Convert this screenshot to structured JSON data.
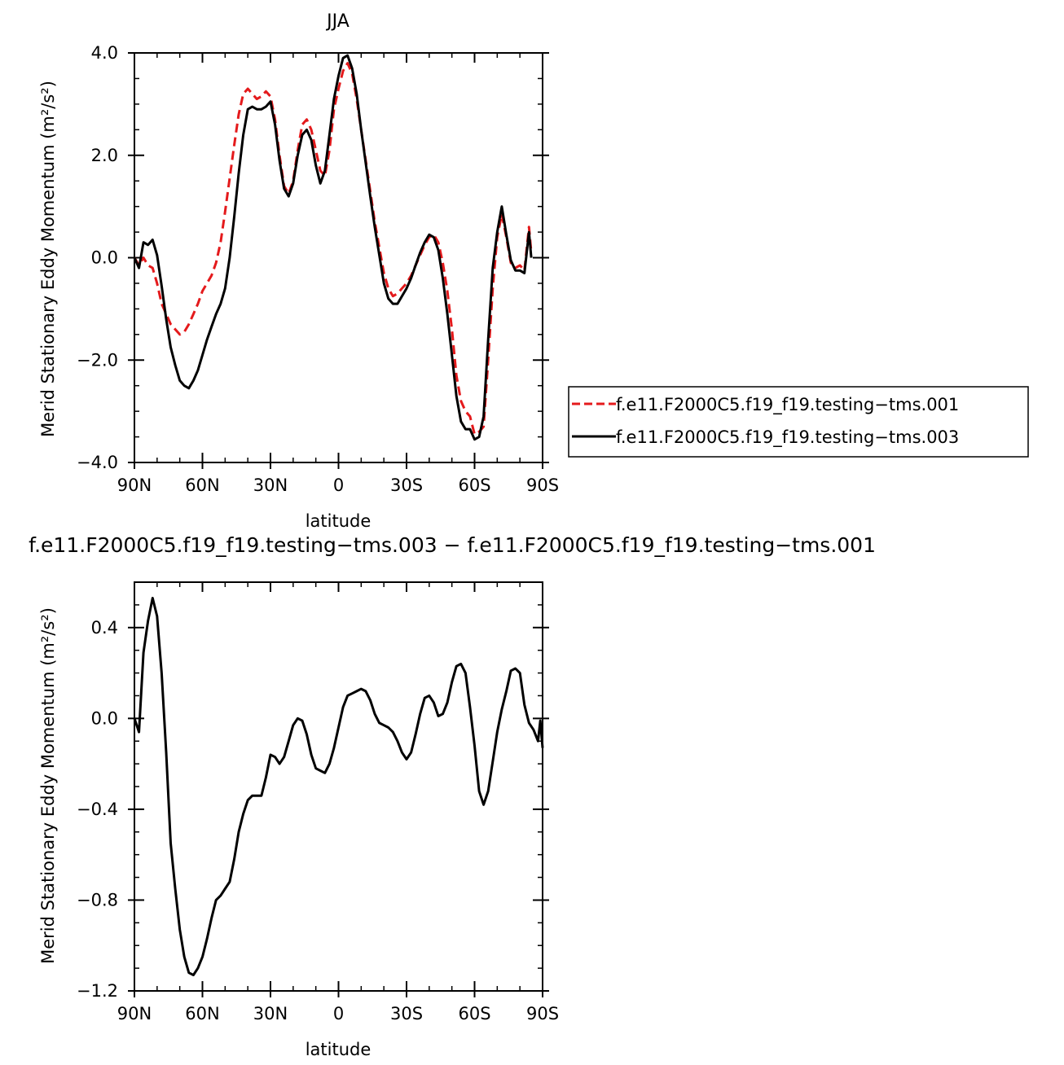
{
  "chart_data": [
    {
      "type": "line",
      "title": "JJA",
      "xlabel": "latitude",
      "ylabel": "Merid Stationary Eddy Momentum (m²/s²)",
      "xlim": [
        90,
        -90
      ],
      "ylim": [
        -4.0,
        4.0
      ],
      "x_ticks": [
        90,
        60,
        30,
        0,
        -30,
        -60,
        -90
      ],
      "x_tick_labels": [
        "90N",
        "60N",
        "30N",
        "0",
        "30S",
        "60S",
        "90S"
      ],
      "y_ticks": [
        -4.0,
        -2.0,
        0.0,
        2.0,
        4.0
      ],
      "y_tick_labels": [
        "−4.0",
        "−2.0",
        "0.0",
        "2.0",
        "4.0"
      ],
      "grid": false,
      "legend_position": "right",
      "series": [
        {
          "name": "f.e11.F2000C5.f19_f19.testing−tms.001",
          "color": "#e41a1c",
          "dash": "dashed",
          "points": [
            [
              90,
              0.0
            ],
            [
              88,
              -0.15
            ],
            [
              86,
              0.0
            ],
            [
              84,
              -0.15
            ],
            [
              82,
              -0.2
            ],
            [
              80,
              -0.5
            ],
            [
              78,
              -0.9
            ],
            [
              76,
              -1.1
            ],
            [
              74,
              -1.3
            ],
            [
              72,
              -1.4
            ],
            [
              70,
              -1.5
            ],
            [
              68,
              -1.45
            ],
            [
              66,
              -1.3
            ],
            [
              64,
              -1.1
            ],
            [
              62,
              -0.9
            ],
            [
              60,
              -0.65
            ],
            [
              58,
              -0.5
            ],
            [
              56,
              -0.35
            ],
            [
              54,
              -0.1
            ],
            [
              52,
              0.3
            ],
            [
              50,
              0.9
            ],
            [
              48,
              1.55
            ],
            [
              46,
              2.2
            ],
            [
              44,
              2.8
            ],
            [
              42,
              3.2
            ],
            [
              40,
              3.3
            ],
            [
              38,
              3.2
            ],
            [
              36,
              3.1
            ],
            [
              34,
              3.15
            ],
            [
              32,
              3.25
            ],
            [
              30,
              3.15
            ],
            [
              28,
              2.7
            ],
            [
              26,
              2.0
            ],
            [
              24,
              1.4
            ],
            [
              22,
              1.25
            ],
            [
              20,
              1.5
            ],
            [
              18,
              2.1
            ],
            [
              16,
              2.6
            ],
            [
              14,
              2.7
            ],
            [
              12,
              2.5
            ],
            [
              10,
              2.1
            ],
            [
              8,
              1.7
            ],
            [
              6,
              1.6
            ],
            [
              4,
              2.1
            ],
            [
              2,
              2.9
            ],
            [
              0,
              3.3
            ],
            [
              -2,
              3.65
            ],
            [
              -4,
              3.8
            ],
            [
              -6,
              3.6
            ],
            [
              -8,
              3.1
            ],
            [
              -10,
              2.5
            ],
            [
              -12,
              1.9
            ],
            [
              -14,
              1.3
            ],
            [
              -16,
              0.7
            ],
            [
              -18,
              0.2
            ],
            [
              -20,
              -0.3
            ],
            [
              -22,
              -0.6
            ],
            [
              -24,
              -0.75
            ],
            [
              -26,
              -0.7
            ],
            [
              -28,
              -0.6
            ],
            [
              -30,
              -0.5
            ],
            [
              -32,
              -0.35
            ],
            [
              -34,
              -0.15
            ],
            [
              -36,
              0.05
            ],
            [
              -38,
              0.25
            ],
            [
              -40,
              0.4
            ],
            [
              -42,
              0.45
            ],
            [
              -44,
              0.3
            ],
            [
              -46,
              -0.1
            ],
            [
              -48,
              -0.65
            ],
            [
              -50,
              -1.4
            ],
            [
              -52,
              -2.3
            ],
            [
              -54,
              -2.8
            ],
            [
              -56,
              -3.0
            ],
            [
              -58,
              -3.1
            ],
            [
              -60,
              -3.45
            ],
            [
              -62,
              -3.4
            ],
            [
              -64,
              -3.3
            ],
            [
              -66,
              -2.0
            ],
            [
              -68,
              -0.6
            ],
            [
              -70,
              0.4
            ],
            [
              -72,
              0.85
            ],
            [
              -74,
              0.4
            ],
            [
              -76,
              -0.1
            ],
            [
              -78,
              -0.2
            ],
            [
              -80,
              -0.15
            ],
            [
              -82,
              -0.25
            ],
            [
              -84,
              0.6
            ],
            [
              -85,
              0.1
            ]
          ]
        },
        {
          "name": "f.e11.F2000C5.f19_f19.testing−tms.003",
          "color": "#000000",
          "dash": "solid",
          "points": [
            [
              90,
              0.0
            ],
            [
              88,
              -0.2
            ],
            [
              86,
              0.3
            ],
            [
              84,
              0.25
            ],
            [
              82,
              0.35
            ],
            [
              80,
              0.05
            ],
            [
              78,
              -0.55
            ],
            [
              76,
              -1.2
            ],
            [
              74,
              -1.75
            ],
            [
              72,
              -2.1
            ],
            [
              70,
              -2.4
            ],
            [
              68,
              -2.5
            ],
            [
              66,
              -2.55
            ],
            [
              64,
              -2.4
            ],
            [
              62,
              -2.2
            ],
            [
              60,
              -1.9
            ],
            [
              58,
              -1.6
            ],
            [
              56,
              -1.35
            ],
            [
              54,
              -1.1
            ],
            [
              52,
              -0.9
            ],
            [
              50,
              -0.6
            ],
            [
              48,
              0.0
            ],
            [
              46,
              0.8
            ],
            [
              44,
              1.65
            ],
            [
              42,
              2.4
            ],
            [
              40,
              2.9
            ],
            [
              38,
              2.95
            ],
            [
              36,
              2.9
            ],
            [
              34,
              2.9
            ],
            [
              32,
              2.95
            ],
            [
              30,
              3.05
            ],
            [
              28,
              2.6
            ],
            [
              26,
              1.9
            ],
            [
              24,
              1.35
            ],
            [
              22,
              1.2
            ],
            [
              20,
              1.45
            ],
            [
              18,
              2.0
            ],
            [
              16,
              2.4
            ],
            [
              14,
              2.5
            ],
            [
              12,
              2.3
            ],
            [
              10,
              1.8
            ],
            [
              8,
              1.45
            ],
            [
              6,
              1.7
            ],
            [
              4,
              2.4
            ],
            [
              2,
              3.1
            ],
            [
              0,
              3.55
            ],
            [
              -2,
              3.9
            ],
            [
              -4,
              3.95
            ],
            [
              -6,
              3.7
            ],
            [
              -8,
              3.2
            ],
            [
              -10,
              2.5
            ],
            [
              -12,
              1.85
            ],
            [
              -14,
              1.2
            ],
            [
              -16,
              0.6
            ],
            [
              -18,
              0.05
            ],
            [
              -20,
              -0.5
            ],
            [
              -22,
              -0.8
            ],
            [
              -24,
              -0.9
            ],
            [
              -26,
              -0.9
            ],
            [
              -28,
              -0.75
            ],
            [
              -30,
              -0.6
            ],
            [
              -32,
              -0.4
            ],
            [
              -34,
              -0.15
            ],
            [
              -36,
              0.1
            ],
            [
              -38,
              0.3
            ],
            [
              -40,
              0.45
            ],
            [
              -42,
              0.4
            ],
            [
              -44,
              0.15
            ],
            [
              -46,
              -0.4
            ],
            [
              -48,
              -1.1
            ],
            [
              -50,
              -1.9
            ],
            [
              -52,
              -2.7
            ],
            [
              -54,
              -3.2
            ],
            [
              -56,
              -3.35
            ],
            [
              -58,
              -3.35
            ],
            [
              -60,
              -3.55
            ],
            [
              -62,
              -3.5
            ],
            [
              -64,
              -3.1
            ],
            [
              -66,
              -1.6
            ],
            [
              -68,
              -0.2
            ],
            [
              -70,
              0.5
            ],
            [
              -72,
              1.0
            ],
            [
              -74,
              0.45
            ],
            [
              -76,
              -0.05
            ],
            [
              -78,
              -0.25
            ],
            [
              -80,
              -0.25
            ],
            [
              -82,
              -0.3
            ],
            [
              -84,
              0.5
            ],
            [
              -85,
              0.0
            ]
          ]
        }
      ]
    },
    {
      "type": "line",
      "title": "f.e11.F2000C5.f19_f19.testing−tms.003 − f.e11.F2000C5.f19_f19.testing−tms.001",
      "xlabel": "latitude",
      "ylabel": "Merid Stationary Eddy Momentum (m²/s²)",
      "xlim": [
        90,
        -90
      ],
      "ylim": [
        -1.2,
        0.6
      ],
      "x_ticks": [
        90,
        60,
        30,
        0,
        -30,
        -60,
        -90
      ],
      "x_tick_labels": [
        "90N",
        "60N",
        "30N",
        "0",
        "30S",
        "60S",
        "90S"
      ],
      "y_ticks": [
        -1.2,
        -0.8,
        -0.4,
        0.0,
        0.4
      ],
      "y_tick_labels": [
        "−1.2",
        "−0.8",
        "−0.4",
        "0.0",
        "0.4"
      ],
      "grid": false,
      "series": [
        {
          "color": "#000000",
          "dash": "solid",
          "points": [
            [
              90,
              0.0
            ],
            [
              88,
              -0.06
            ],
            [
              86,
              0.29
            ],
            [
              84,
              0.43
            ],
            [
              82,
              0.53
            ],
            [
              80,
              0.45
            ],
            [
              78,
              0.2
            ],
            [
              76,
              -0.15
            ],
            [
              74,
              -0.55
            ],
            [
              72,
              -0.75
            ],
            [
              70,
              -0.93
            ],
            [
              68,
              -1.05
            ],
            [
              66,
              -1.12
            ],
            [
              64,
              -1.13
            ],
            [
              62,
              -1.1
            ],
            [
              60,
              -1.05
            ],
            [
              58,
              -0.97
            ],
            [
              56,
              -0.88
            ],
            [
              54,
              -0.8
            ],
            [
              52,
              -0.78
            ],
            [
              50,
              -0.75
            ],
            [
              48,
              -0.72
            ],
            [
              46,
              -0.62
            ],
            [
              44,
              -0.5
            ],
            [
              42,
              -0.42
            ],
            [
              40,
              -0.36
            ],
            [
              38,
              -0.34
            ],
            [
              36,
              -0.34
            ],
            [
              34,
              -0.34
            ],
            [
              32,
              -0.26
            ],
            [
              30,
              -0.16
            ],
            [
              28,
              -0.17
            ],
            [
              26,
              -0.2
            ],
            [
              24,
              -0.17
            ],
            [
              22,
              -0.1
            ],
            [
              20,
              -0.03
            ],
            [
              18,
              0.0
            ],
            [
              16,
              -0.01
            ],
            [
              14,
              -0.07
            ],
            [
              12,
              -0.16
            ],
            [
              10,
              -0.22
            ],
            [
              8,
              -0.23
            ],
            [
              6,
              -0.24
            ],
            [
              4,
              -0.2
            ],
            [
              2,
              -0.13
            ],
            [
              0,
              -0.04
            ],
            [
              -2,
              0.05
            ],
            [
              -4,
              0.1
            ],
            [
              -6,
              0.11
            ],
            [
              -8,
              0.12
            ],
            [
              -10,
              0.13
            ],
            [
              -12,
              0.12
            ],
            [
              -14,
              0.08
            ],
            [
              -16,
              0.02
            ],
            [
              -18,
              -0.02
            ],
            [
              -20,
              -0.03
            ],
            [
              -22,
              -0.04
            ],
            [
              -24,
              -0.06
            ],
            [
              -26,
              -0.1
            ],
            [
              -28,
              -0.15
            ],
            [
              -30,
              -0.18
            ],
            [
              -32,
              -0.15
            ],
            [
              -34,
              -0.07
            ],
            [
              -36,
              0.02
            ],
            [
              -38,
              0.09
            ],
            [
              -40,
              0.1
            ],
            [
              -42,
              0.07
            ],
            [
              -44,
              0.01
            ],
            [
              -46,
              0.02
            ],
            [
              -48,
              0.07
            ],
            [
              -50,
              0.16
            ],
            [
              -52,
              0.23
            ],
            [
              -54,
              0.24
            ],
            [
              -56,
              0.2
            ],
            [
              -58,
              0.05
            ],
            [
              -60,
              -0.12
            ],
            [
              -62,
              -0.32
            ],
            [
              -64,
              -0.38
            ],
            [
              -66,
              -0.32
            ],
            [
              -68,
              -0.19
            ],
            [
              -70,
              -0.06
            ],
            [
              -72,
              0.04
            ],
            [
              -74,
              0.12
            ],
            [
              -76,
              0.21
            ],
            [
              -78,
              0.22
            ],
            [
              -80,
              0.2
            ],
            [
              -82,
              0.06
            ],
            [
              -84,
              -0.02
            ],
            [
              -86,
              -0.05
            ],
            [
              -88,
              -0.1
            ],
            [
              -89,
              -0.01
            ],
            [
              -90,
              -0.13
            ]
          ]
        }
      ]
    }
  ]
}
